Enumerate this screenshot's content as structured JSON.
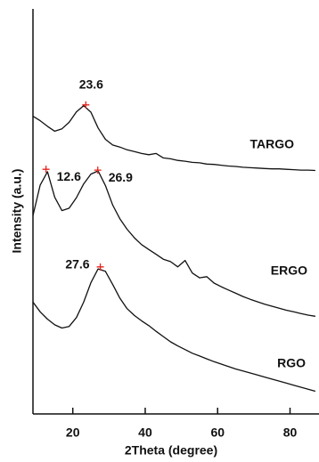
{
  "chart_data": {
    "type": "line",
    "xlabel": "2Theta (degree)",
    "ylabel": "Intensity (a.u.)",
    "xlim": [
      9,
      88
    ],
    "ylim": [
      0,
      100
    ],
    "xticks": [
      20,
      40,
      60,
      80
    ],
    "x": [
      9,
      11,
      13,
      15,
      17,
      19,
      21,
      23,
      25,
      27,
      29,
      31,
      33,
      35,
      37,
      39,
      41,
      43,
      45,
      47,
      49,
      51,
      53,
      55,
      57,
      59,
      61,
      63,
      65,
      67,
      69,
      71,
      73,
      75,
      77,
      79,
      81,
      83,
      85,
      87
    ],
    "marker_color": "#e8221b",
    "series": [
      {
        "name": "TARGO",
        "color": "#111111",
        "values": [
          73.5,
          72.4,
          71.0,
          69.8,
          70.4,
          72.0,
          74.6,
          76.1,
          74.5,
          70.6,
          67.8,
          66.4,
          65.9,
          65.2,
          64.8,
          64.3,
          64.0,
          64.3,
          63.2,
          63.0,
          62.6,
          62.4,
          62.1,
          62.0,
          61.7,
          61.6,
          61.4,
          61.2,
          61.1,
          60.9,
          60.8,
          60.7,
          60.6,
          60.5,
          60.5,
          60.4,
          60.3,
          60.2,
          60.2,
          60.1
        ],
        "peaks": [
          {
            "x": 23.6,
            "y": 76.3
          }
        ]
      },
      {
        "name": "ERGO",
        "color": "#111111",
        "values": [
          49.0,
          56.5,
          59.8,
          53.5,
          50.2,
          50.8,
          53.4,
          56.8,
          59.2,
          60.0,
          56.4,
          51.6,
          48.2,
          45.6,
          43.5,
          41.8,
          40.6,
          39.4,
          38.2,
          37.6,
          36.3,
          37.9,
          34.8,
          33.6,
          33.9,
          32.3,
          31.4,
          30.6,
          29.8,
          29.0,
          28.3,
          27.7,
          27.1,
          26.6,
          26.1,
          25.6,
          25.2,
          24.8,
          24.4,
          24.1
        ],
        "peaks": [
          {
            "x": 12.6,
            "y": 60.4
          },
          {
            "x": 26.9,
            "y": 60.2
          }
        ]
      },
      {
        "name": "RGO",
        "color": "#111111",
        "values": [
          27.6,
          25.2,
          23.4,
          22.0,
          21.2,
          21.6,
          23.8,
          27.6,
          32.4,
          35.8,
          35.2,
          32.0,
          28.6,
          26.0,
          24.3,
          23.0,
          21.8,
          20.4,
          19.1,
          17.8,
          16.8,
          15.9,
          15.0,
          14.3,
          13.6,
          12.9,
          12.3,
          11.7,
          11.1,
          10.6,
          10.1,
          9.6,
          9.1,
          8.6,
          8.1,
          7.6,
          7.1,
          6.6,
          6.1,
          5.6
        ],
        "peaks": [
          {
            "x": 27.6,
            "y": 36.3
          }
        ]
      }
    ]
  }
}
